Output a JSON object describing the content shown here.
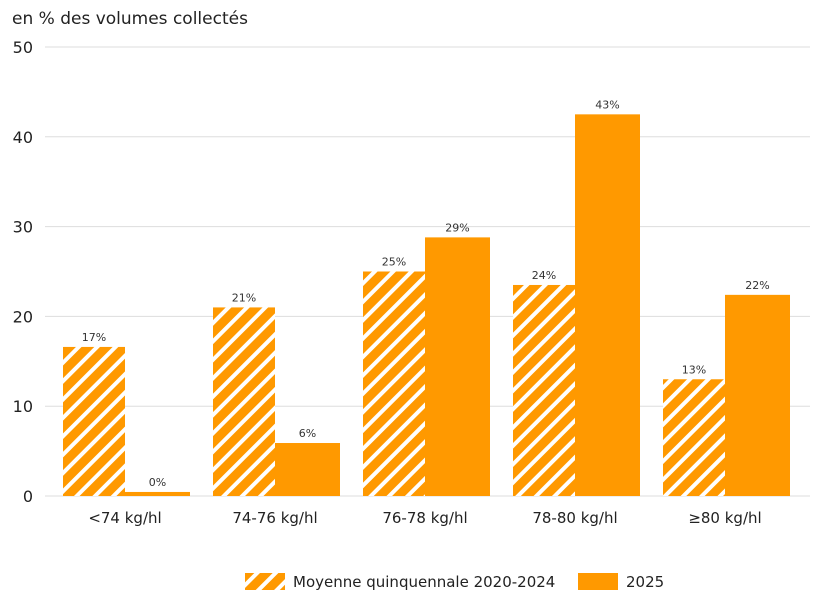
{
  "chart_data": {
    "type": "bar",
    "subtitle": "en % des volumes collectés",
    "categories": [
      "<74 kg/hl",
      "74-76 kg/hl",
      "76-78 kg/hl",
      "78-80 kg/hl",
      "≥80 kg/hl"
    ],
    "series": [
      {
        "name": "Moyenne quinquennale 2020-2024",
        "values": [
          16.6,
          21.0,
          25.0,
          23.5,
          13.0
        ],
        "labels": [
          "17%",
          "21%",
          "25%",
          "24%",
          "13%"
        ],
        "pattern": "hatched",
        "color": "#FF9900"
      },
      {
        "name": "2025",
        "values": [
          0.45,
          5.9,
          28.8,
          42.5,
          22.4
        ],
        "labels": [
          "0%",
          "6%",
          "29%",
          "43%",
          "22%"
        ],
        "pattern": "solid",
        "color": "#FF9900"
      }
    ],
    "ylim": [
      0,
      50
    ],
    "yticks": [
      0,
      10,
      20,
      30,
      40,
      50
    ],
    "grid": true,
    "legend": "bottom"
  }
}
